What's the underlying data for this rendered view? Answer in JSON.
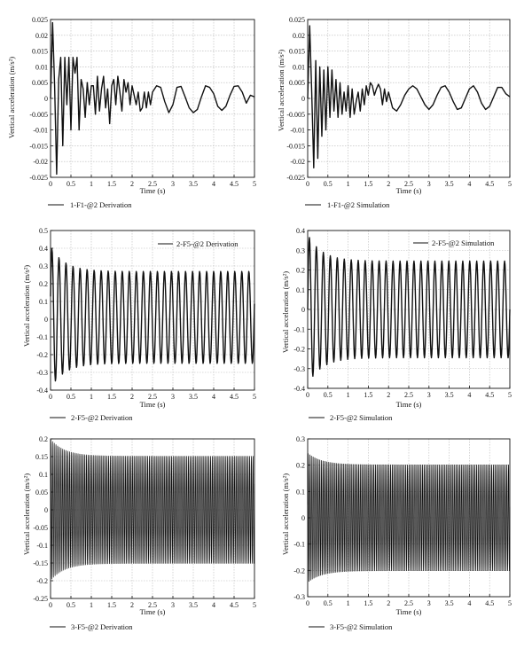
{
  "figure": {
    "panels": [
      {
        "id": "p1",
        "caption": "1-F1-@2 Derivation",
        "legend": "",
        "xlabel": "Time (s)",
        "ylabel": "Vertical acceleration (m/s²)"
      },
      {
        "id": "p2",
        "caption": "1-F1-@2 Simulation",
        "legend": "",
        "xlabel": "Time (s)",
        "ylabel": "Vertical acceleration (m/s²)"
      },
      {
        "id": "p3",
        "caption": "2-F5-@2 Derivation",
        "legend": "2-F5-@2 Derivation",
        "xlabel": "Time (s)",
        "ylabel": "Vertical acceleration (m/s²)"
      },
      {
        "id": "p4",
        "caption": "2-F5-@2 Simulation",
        "legend": "2-F5-@2 Simulation",
        "xlabel": "Time (s)",
        "ylabel": "Vertical acceleration (m/s²)"
      },
      {
        "id": "p5",
        "caption": "3-F5-@2 Derivation",
        "legend": "",
        "xlabel": "Time (s)",
        "ylabel": "Vertical acceleration (m/s²)"
      },
      {
        "id": "p6",
        "caption": "3-F5-@2 Simulation",
        "legend": "",
        "xlabel": "Time (s)",
        "ylabel": "Vertical acceleration (m/s²)"
      }
    ]
  },
  "chart_data": [
    {
      "type": "line",
      "xlabel": "Time (s)",
      "ylabel": "Vertical acceleration (m/s²)",
      "xlim": [
        0,
        5
      ],
      "ylim": [
        -0.025,
        0.025
      ],
      "xticks": [
        "0",
        "0.5",
        "1",
        "1.5",
        "2",
        "2.5",
        "3",
        "3.5",
        "4",
        "4.5",
        "5"
      ],
      "yticks": [
        "0.025",
        "0.02",
        "0.015",
        "0.01",
        "0.005",
        "0",
        "-0.005",
        "-0.01",
        "-0.015",
        "-0.02",
        "-0.025"
      ],
      "grid": true,
      "series": [
        {
          "x": [
            0,
            0.05,
            0.1,
            0.15,
            0.2,
            0.25,
            0.3,
            0.35,
            0.4,
            0.45,
            0.5,
            0.55,
            0.6,
            0.65,
            0.7,
            0.75,
            0.8,
            0.85,
            0.9,
            0.95,
            1,
            1.05,
            1.1,
            1.15,
            1.2,
            1.25,
            1.3,
            1.35,
            1.4,
            1.45,
            1.5,
            1.55,
            1.6,
            1.65,
            1.7,
            1.75,
            1.8,
            1.85,
            1.9,
            1.95,
            2,
            2.05,
            2.1,
            2.15,
            2.2,
            2.25,
            2.3,
            2.35,
            2.4,
            2.45,
            2.5,
            2.6,
            2.7,
            2.8,
            2.9,
            3,
            3.1,
            3.2,
            3.3,
            3.4,
            3.5,
            3.6,
            3.7,
            3.8,
            3.9,
            4,
            4.1,
            4.2,
            4.3,
            4.4,
            4.5,
            4.6,
            4.7,
            4.8,
            4.9,
            5
          ],
          "y": [
            0,
            0.024,
            0.004,
            -0.024,
            0.006,
            0.013,
            -0.015,
            0.013,
            -0.002,
            0.013,
            -0.01,
            0.013,
            0.008,
            0.013,
            -0.01,
            0.006,
            0.003,
            -0.006,
            0.005,
            -0.002,
            0.004,
            0.004,
            -0.005,
            0.007,
            -0.004,
            0.003,
            0.007,
            -0.003,
            0.003,
            -0.008,
            0.004,
            0.006,
            -0.002,
            0.007,
            0.002,
            -0.004,
            0.006,
            0.002,
            0.005,
            -0.002,
            0.004,
            0.001,
            -0.002,
            0.002,
            -0.004,
            -0.003,
            0.002,
            -0.003,
            0.002,
            -0.002,
            0.002,
            0.004,
            0.0035,
            -0.001,
            -0.0045,
            -0.002,
            0.0035,
            0.0038,
            0.0005,
            -0.003,
            -0.0045,
            -0.0035,
            0.0005,
            0.004,
            0.0035,
            0.0015,
            -0.0025,
            -0.0038,
            -0.0025,
            0.001,
            0.0038,
            0.004,
            0.002,
            -0.0015,
            0.001,
            0.0005
          ]
        }
      ]
    },
    {
      "type": "line",
      "xlabel": "Time (s)",
      "ylabel": "Vertical acceleration (m/s²)",
      "xlim": [
        0,
        5
      ],
      "ylim": [
        -0.025,
        0.025
      ],
      "xticks": [
        "0",
        "0.5",
        "1",
        "1.5",
        "2",
        "2.5",
        "3",
        "3.5",
        "4",
        "4.5",
        "5"
      ],
      "yticks": [
        "0.025",
        "0.02",
        "0.015",
        "0.01",
        "0.005",
        "0",
        "-0.005",
        "-0.01",
        "-0.015",
        "-0.02",
        "-0.025"
      ],
      "grid": true,
      "series": [
        {
          "x": [
            0,
            0.05,
            0.1,
            0.15,
            0.2,
            0.25,
            0.3,
            0.35,
            0.4,
            0.45,
            0.5,
            0.55,
            0.6,
            0.65,
            0.7,
            0.75,
            0.8,
            0.85,
            0.9,
            0.95,
            1,
            1.05,
            1.1,
            1.15,
            1.2,
            1.25,
            1.3,
            1.35,
            1.4,
            1.45,
            1.5,
            1.55,
            1.6,
            1.65,
            1.7,
            1.75,
            1.8,
            1.85,
            1.9,
            1.95,
            2,
            2.1,
            2.2,
            2.3,
            2.4,
            2.5,
            2.6,
            2.7,
            2.8,
            2.9,
            3,
            3.1,
            3.2,
            3.3,
            3.4,
            3.5,
            3.6,
            3.7,
            3.8,
            3.9,
            4,
            4.1,
            4.2,
            4.3,
            4.4,
            4.5,
            4.6,
            4.7,
            4.8,
            4.9,
            5
          ],
          "y": [
            0,
            0.023,
            0.002,
            -0.022,
            0.012,
            -0.019,
            0.01,
            -0.012,
            0.009,
            -0.01,
            0.01,
            -0.006,
            0.009,
            -0.004,
            0.006,
            -0.006,
            0.005,
            -0.005,
            0.002,
            -0.004,
            0.004,
            -0.006,
            0.003,
            -0.005,
            -0.001,
            0.002,
            -0.004,
            0.003,
            -0.002,
            0.004,
            0.001,
            0.005,
            0.004,
            0.001,
            0.003,
            0.0045,
            0.003,
            -0.002,
            0.003,
            -0.001,
            0.002,
            -0.003,
            -0.004,
            -0.002,
            0.001,
            0.003,
            0.004,
            0.003,
            0.0005,
            -0.002,
            -0.0035,
            -0.002,
            0.001,
            0.0035,
            0.004,
            0.002,
            -0.001,
            -0.0035,
            -0.003,
            0.0,
            0.003,
            0.004,
            0.002,
            -0.0015,
            -0.0035,
            -0.0025,
            0.0005,
            0.0035,
            0.0035,
            0.0015,
            0.0005
          ]
        }
      ]
    },
    {
      "type": "line",
      "xlabel": "Time (s)",
      "ylabel": "Vertical acceleration (m/s²)",
      "xlim": [
        0,
        5
      ],
      "ylim": [
        -0.4,
        0.5
      ],
      "xticks": [
        "0",
        "0.5",
        "1",
        "1.5",
        "2",
        "2.5",
        "3",
        "3.5",
        "4",
        "4.5",
        "5"
      ],
      "yticks": [
        "0.5",
        "0.4",
        "0.3",
        "0.2",
        "0.1",
        "0",
        "-0.1",
        "-0.2",
        "-0.3",
        "-0.4"
      ],
      "grid": true,
      "oscillation": {
        "t_end": 5,
        "cycles": 29,
        "amp_start": 0.4,
        "amp_steady": 0.26,
        "offset": 0.01,
        "phase": 0.3
      }
    },
    {
      "type": "line",
      "xlabel": "Time (s)",
      "ylabel": "Vertical acceleration (m/s²)",
      "xlim": [
        0,
        5
      ],
      "ylim": [
        -0.4,
        0.4
      ],
      "xticks": [
        "0",
        "0.5",
        "1",
        "1.5",
        "2",
        "2.5",
        "3",
        "3.5",
        "4",
        "4.5",
        "5"
      ],
      "yticks": [
        "0.4",
        "0.3",
        "0.2",
        "0.1",
        "0",
        "-0.1",
        "-0.2",
        "-0.3",
        "-0.4"
      ],
      "grid": true,
      "oscillation": {
        "t_end": 5,
        "cycles": 29,
        "amp_start": 0.38,
        "amp_steady": 0.245,
        "offset": 0.0,
        "phase": 0.0
      }
    },
    {
      "type": "line",
      "xlabel": "Time (s)",
      "ylabel": "Vertical acceleration (m/s²)",
      "xlim": [
        0,
        5
      ],
      "ylim": [
        -0.25,
        0.2
      ],
      "xticks": [
        "0",
        "0.5",
        "1",
        "1.5",
        "2",
        "2.5",
        "3",
        "3.5",
        "4",
        "4.5",
        "5"
      ],
      "yticks": [
        "0.2",
        "0.15",
        "0.1",
        "0.05",
        "0",
        "-0.05",
        "-0.1",
        "-0.15",
        "-0.2",
        "-0.25"
      ],
      "grid": true,
      "oscillation": {
        "t_end": 5,
        "cycles": 120,
        "amp_start": 0.2,
        "amp_steady": 0.152,
        "offset": 0.0,
        "phase": 0.5
      }
    },
    {
      "type": "line",
      "xlabel": "Time (s)",
      "ylabel": "Vertical acceleration (m/s²)",
      "xlim": [
        0,
        5
      ],
      "ylim": [
        -0.3,
        0.3
      ],
      "xticks": [
        "0",
        "0.5",
        "1",
        "1.5",
        "2",
        "2.5",
        "3",
        "3.5",
        "4",
        "4.5",
        "5"
      ],
      "yticks": [
        "0.3",
        "0.2",
        "0.1",
        "0",
        "-0.1",
        "-0.2",
        "-0.3"
      ],
      "grid": true,
      "oscillation": {
        "t_end": 5,
        "cycles": 120,
        "amp_start": 0.25,
        "amp_steady": 0.205,
        "offset": 0.0,
        "phase": 0.2
      }
    }
  ]
}
